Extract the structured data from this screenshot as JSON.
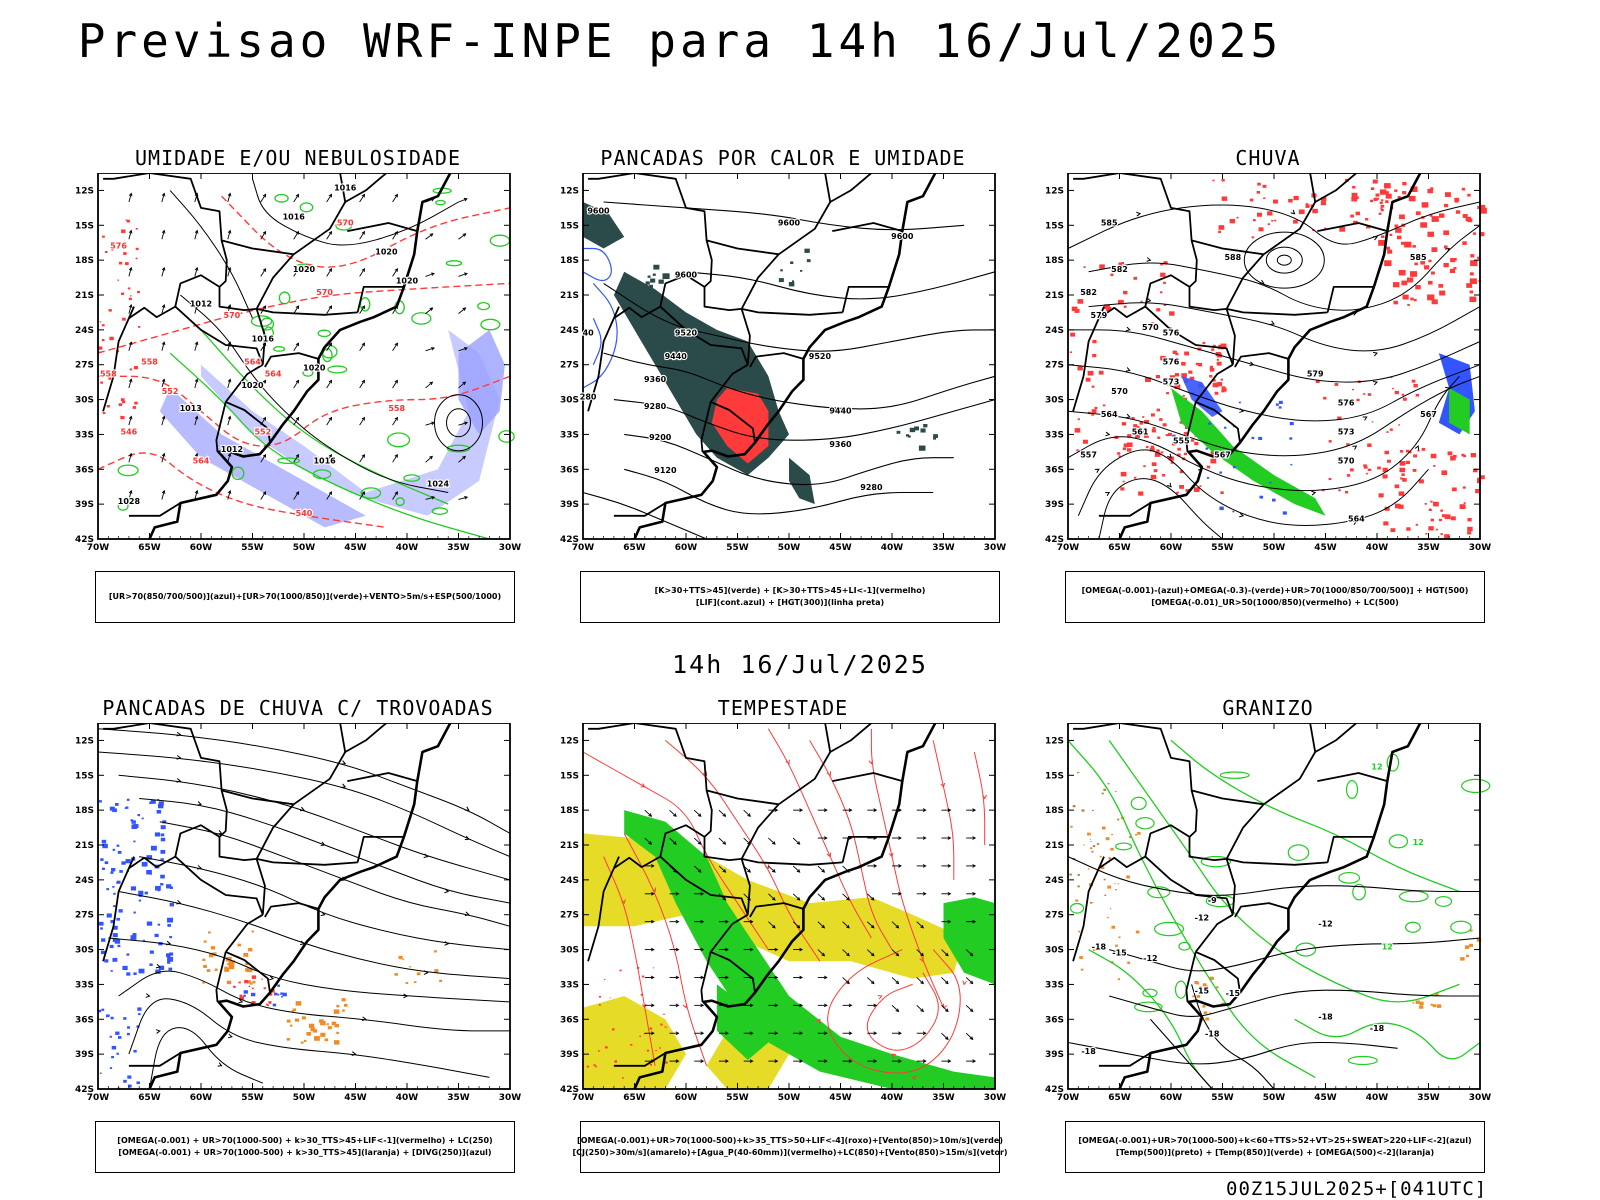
{
  "title": "Previsao WRF-INPE  para 14h 16/Jul/2025",
  "middle_label": "14h 16/Jul/2025",
  "footer": "00Z15JUL2025+[041UTC]",
  "axes": {
    "lat_labels": [
      "12S",
      "15S",
      "18S",
      "21S",
      "24S",
      "27S",
      "30S",
      "33S",
      "36S",
      "39S",
      "42S"
    ],
    "lon_labels": [
      "70W",
      "65W",
      "60W",
      "55W",
      "50W",
      "45W",
      "40W",
      "35W",
      "30W"
    ]
  },
  "panels": [
    {
      "title": "UMIDADE E/OU NEBULOSIDADE",
      "legend": [
        "[UR>70(850/700/500)](azul)+[UR>70(1000/850)](verde)+VENTO>5m/s+ESP(500/1000)"
      ],
      "contour_labels": [
        {
          "text": "1016",
          "color": "#000000"
        },
        {
          "text": "1016",
          "color": "#000000"
        },
        {
          "text": "1020",
          "color": "#000000"
        },
        {
          "text": "1020",
          "color": "#000000"
        },
        {
          "text": "1012",
          "color": "#000000"
        },
        {
          "text": "1020",
          "color": "#000000"
        },
        {
          "text": "1016",
          "color": "#000000"
        },
        {
          "text": "1020",
          "color": "#000000"
        },
        {
          "text": "1020",
          "color": "#000000"
        },
        {
          "text": "1013",
          "color": "#000000"
        },
        {
          "text": "1012",
          "color": "#000000"
        },
        {
          "text": "1016",
          "color": "#000000"
        },
        {
          "text": "1024",
          "color": "#000000"
        },
        {
          "text": "1028",
          "color": "#000000"
        },
        {
          "text": "570",
          "color": "#ff3030"
        },
        {
          "text": "576",
          "color": "#ff3030"
        },
        {
          "text": "570",
          "color": "#ff3030"
        },
        {
          "text": "570",
          "color": "#ff3030"
        },
        {
          "text": "564",
          "color": "#ff3030"
        },
        {
          "text": "558",
          "color": "#ff3030"
        },
        {
          "text": "552",
          "color": "#ff3030"
        },
        {
          "text": "558",
          "color": "#ff3030"
        },
        {
          "text": "546",
          "color": "#ff3030"
        },
        {
          "text": "564",
          "color": "#ff3030"
        },
        {
          "text": "564",
          "color": "#ff3030"
        },
        {
          "text": "558",
          "color": "#ff3030"
        },
        {
          "text": "552",
          "color": "#ff3030"
        },
        {
          "text": "540",
          "color": "#ff3030"
        }
      ]
    },
    {
      "title": "PANCADAS POR CALOR E UMIDADE",
      "legend": [
        "[K>30+TTS>45](verde) + [K>30+TTS>45+LI<-1](vermelho)",
        "[LIF](cont.azul) + [HGT(300)](linha preta)"
      ],
      "contour_labels": [
        {
          "text": "9600",
          "color": "#000000"
        },
        {
          "text": "9600",
          "color": "#000000"
        },
        {
          "text": "9600",
          "color": "#000000"
        },
        {
          "text": "9600",
          "color": "#000000"
        },
        {
          "text": "9520",
          "color": "#000000"
        },
        {
          "text": "9440",
          "color": "#000000"
        },
        {
          "text": "9520",
          "color": "#000000"
        },
        {
          "text": "9360",
          "color": "#000000"
        },
        {
          "text": "9440",
          "color": "#000000"
        },
        {
          "text": "9280",
          "color": "#000000"
        },
        {
          "text": "9360",
          "color": "#000000"
        },
        {
          "text": "9200",
          "color": "#000000"
        },
        {
          "text": "9120",
          "color": "#000000"
        },
        {
          "text": "9280",
          "color": "#000000"
        },
        {
          "text": "280",
          "color": "#000000"
        },
        {
          "text": "40",
          "color": "#000000"
        }
      ]
    },
    {
      "title": "CHUVA",
      "legend": [
        "[OMEGA(-0.001)-(azul)+OMEGA(-0.3)-(verde)+UR>70(1000/850/700/500)] + HGT(500)",
        "[OMEGA(-0.01)_UR>50(1000/850)(vermelho) + LC(500)"
      ],
      "contour_labels": [
        {
          "text": "585",
          "color": "#000000"
        },
        {
          "text": "588",
          "color": "#000000"
        },
        {
          "text": "585",
          "color": "#000000"
        },
        {
          "text": "582",
          "color": "#000000"
        },
        {
          "text": "579",
          "color": "#000000"
        },
        {
          "text": "576",
          "color": "#000000"
        },
        {
          "text": "576",
          "color": "#000000"
        },
        {
          "text": "573",
          "color": "#000000"
        },
        {
          "text": "570",
          "color": "#000000"
        },
        {
          "text": "564",
          "color": "#000000"
        },
        {
          "text": "561",
          "color": "#000000"
        },
        {
          "text": "555",
          "color": "#000000"
        },
        {
          "text": "557",
          "color": "#000000"
        },
        {
          "text": "567",
          "color": "#000000"
        },
        {
          "text": "579",
          "color": "#000000"
        },
        {
          "text": "576",
          "color": "#000000"
        },
        {
          "text": "573",
          "color": "#000000"
        },
        {
          "text": "570",
          "color": "#000000"
        },
        {
          "text": "567",
          "color": "#000000"
        },
        {
          "text": "564",
          "color": "#000000"
        },
        {
          "text": "570",
          "color": "#000000"
        },
        {
          "text": "582",
          "color": "#000000"
        }
      ]
    },
    {
      "title": "PANCADAS DE CHUVA C/ TROVOADAS",
      "legend": [
        "[OMEGA(-0.001) + UR>70(1000-500) + k>30_TTS>45+LIF<-1](vermelho) + LC(250)",
        "[OMEGA(-0.001) + UR>70(1000-500) + k>30_TTS>45](laranja) + [DIVG(250)](azul)"
      ],
      "contour_labels": []
    },
    {
      "title": "TEMPESTADE",
      "legend": [
        "[OMEGA(-0.001)+UR>70(1000-500)+k>35_TTS>50+LIF<-4](roxo)+[Vento(850)>10m/s](verde)",
        "[CJ(250)>30m/s](amarelo)+[Agua_P(40-60mm)](vermelho)+LC(850)+[Vento(850)>15m/s](vetor)"
      ],
      "contour_labels": []
    },
    {
      "title": "GRANIZO",
      "legend": [
        "[OMEGA(-0.001)+UR>70(1000-500)+k<60+TTS>52+VT>25+SWEAT>220+LIF<-2](azul)",
        "[Temp(500)](preto) + [Temp(850)](verde) + [OMEGA(500)<-2](laranja)"
      ],
      "contour_labels": [
        {
          "text": "12",
          "color": "#22cc22"
        },
        {
          "text": "12",
          "color": "#22cc22"
        },
        {
          "text": "12",
          "color": "#22cc22"
        },
        {
          "text": "-9",
          "color": "#000000"
        },
        {
          "text": "-12",
          "color": "#000000"
        },
        {
          "text": "-12",
          "color": "#000000"
        },
        {
          "text": "-12",
          "color": "#000000"
        },
        {
          "text": "-15",
          "color": "#000000"
        },
        {
          "text": "-15",
          "color": "#000000"
        },
        {
          "text": "-15",
          "color": "#000000"
        },
        {
          "text": "-18",
          "color": "#000000"
        },
        {
          "text": "-18",
          "color": "#000000"
        },
        {
          "text": "-18",
          "color": "#000000"
        },
        {
          "text": "-18",
          "color": "#000000"
        },
        {
          "text": "-18",
          "color": "#000000"
        }
      ]
    }
  ],
  "colors": {
    "blue": "#3355ff",
    "green": "#22cc22",
    "red": "#ff3a3a",
    "dark_teal": "#2b4a4a",
    "yellow": "#e6dc28",
    "orange": "#f08c28",
    "lavender": "#9aa0ff",
    "brown": "#c08040"
  }
}
